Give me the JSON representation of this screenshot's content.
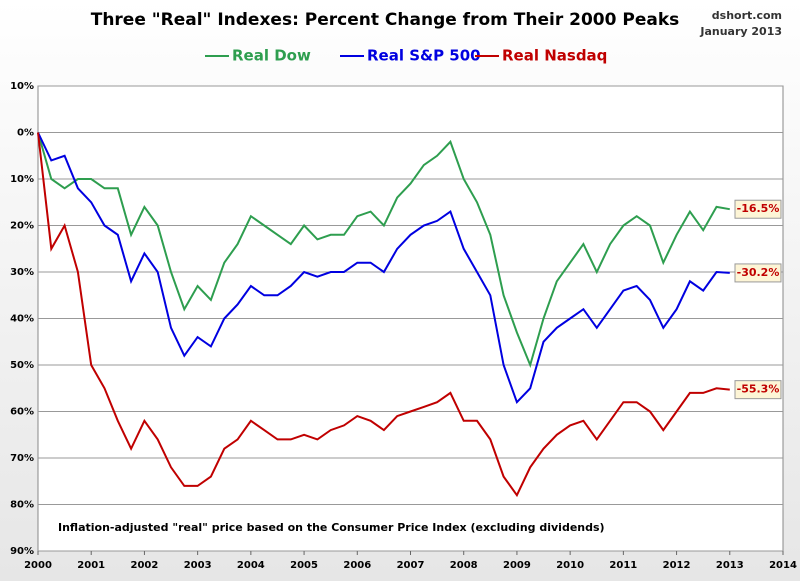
{
  "chart_data": {
    "type": "line",
    "title": "Three \"Real\" Indexes: Percent Change from Their 2000 Peaks",
    "source": "dshort.com",
    "date": "January 2013",
    "note": "Inflation-adjusted \"real\" price based on the Consumer Price Index (excluding dividends)",
    "x": [
      2000,
      2000.25,
      2000.5,
      2000.75,
      2001,
      2001.25,
      2001.5,
      2001.75,
      2002,
      2002.25,
      2002.5,
      2002.75,
      2003,
      2003.25,
      2003.5,
      2003.75,
      2004,
      2004.25,
      2004.5,
      2004.75,
      2005,
      2005.25,
      2005.5,
      2005.75,
      2006,
      2006.25,
      2006.5,
      2006.75,
      2007,
      2007.25,
      2007.5,
      2007.75,
      2008,
      2008.25,
      2008.5,
      2008.75,
      2009,
      2009.25,
      2009.5,
      2009.75,
      2010,
      2010.25,
      2010.5,
      2010.75,
      2011,
      2011.25,
      2011.5,
      2011.75,
      2012,
      2012.25,
      2012.5,
      2012.75,
      2013
    ],
    "series": [
      {
        "name": "Real Dow",
        "color": "#2e9e4f",
        "last_label": "-16.5%",
        "values": [
          0,
          -10,
          -12,
          -10,
          -10,
          -12,
          -12,
          -22,
          -16,
          -20,
          -30,
          -38,
          -33,
          -36,
          -28,
          -24,
          -18,
          -20,
          -22,
          -24,
          -20,
          -23,
          -22,
          -22,
          -18,
          -17,
          -20,
          -14,
          -11,
          -7,
          -5,
          -2,
          -10,
          -15,
          -22,
          -35,
          -43,
          -50,
          -40,
          -32,
          -28,
          -24,
          -30,
          -24,
          -20,
          -18,
          -20,
          -28,
          -22,
          -17,
          -21,
          -16,
          -16.5
        ]
      },
      {
        "name": "Real S&P 500",
        "color": "#0000e0",
        "last_label": "-30.2%",
        "values": [
          0,
          -6,
          -5,
          -12,
          -15,
          -20,
          -22,
          -32,
          -26,
          -30,
          -42,
          -48,
          -44,
          -46,
          -40,
          -37,
          -33,
          -35,
          -35,
          -33,
          -30,
          -31,
          -30,
          -30,
          -28,
          -28,
          -30,
          -25,
          -22,
          -20,
          -19,
          -17,
          -25,
          -30,
          -35,
          -50,
          -58,
          -55,
          -45,
          -42,
          -40,
          -38,
          -42,
          -38,
          -34,
          -33,
          -36,
          -42,
          -38,
          -32,
          -34,
          -30,
          -30.2
        ]
      },
      {
        "name": "Real Nasdaq",
        "color": "#c00000",
        "last_label": "-55.3%",
        "values": [
          0,
          -25,
          -20,
          -30,
          -50,
          -55,
          -62,
          -68,
          -62,
          -66,
          -72,
          -76,
          -76,
          -74,
          -68,
          -66,
          -62,
          -64,
          -66,
          -66,
          -65,
          -66,
          -64,
          -63,
          -61,
          -62,
          -64,
          -61,
          -60,
          -59,
          -58,
          -56,
          -62,
          -62,
          -66,
          -74,
          -78,
          -72,
          -68,
          -65,
          -63,
          -62,
          -66,
          -62,
          -58,
          -58,
          -60,
          -64,
          -60,
          -56,
          -56,
          -55,
          -55.3
        ]
      }
    ],
    "xlim": [
      2000,
      2014
    ],
    "xticks": [
      2000,
      2001,
      2002,
      2003,
      2004,
      2005,
      2006,
      2007,
      2008,
      2009,
      2010,
      2011,
      2012,
      2013,
      2014
    ],
    "ylim": [
      -90,
      10
    ],
    "yticks": [
      {
        "value": 10,
        "label": "10%"
      },
      {
        "value": 0,
        "label": "0%"
      },
      {
        "value": -10,
        "label": "10%"
      },
      {
        "value": -20,
        "label": "20%"
      },
      {
        "value": -30,
        "label": "30%"
      },
      {
        "value": -40,
        "label": "40%"
      },
      {
        "value": -50,
        "label": "50%"
      },
      {
        "value": -60,
        "label": "60%"
      },
      {
        "value": -70,
        "label": "70%"
      },
      {
        "value": -80,
        "label": "80%"
      },
      {
        "value": -90,
        "label": "90%"
      }
    ],
    "grid": true,
    "legend": "top"
  }
}
